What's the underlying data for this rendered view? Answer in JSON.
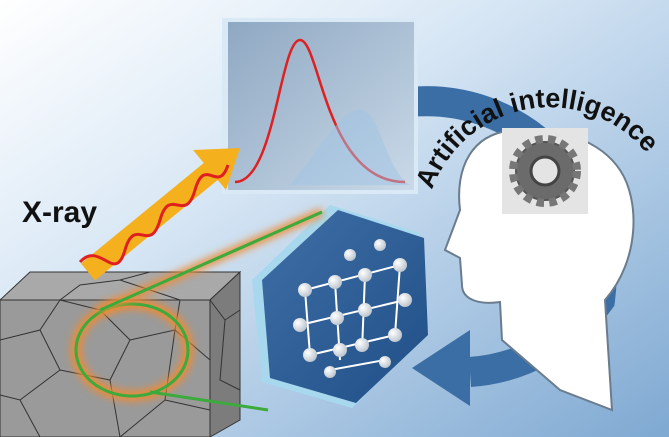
{
  "labels": {
    "xray": "X-ray",
    "ai": "Artificial intelligence"
  }
}
